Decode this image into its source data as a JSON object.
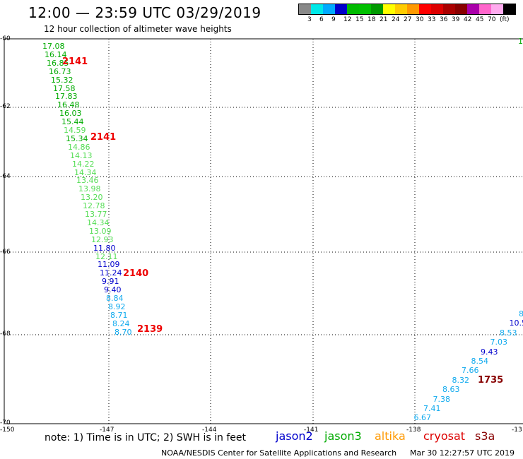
{
  "header": {
    "title": "12:00 — 23:59 UTC 03/29/2019",
    "subtitle": "12 hour collection of altimeter wave heights"
  },
  "legend": {
    "unit": "(ft)",
    "colors": [
      "#888888",
      "#00e8e8",
      "#00aaff",
      "#0000cc",
      "#00bb00",
      "#00c000",
      "#009900",
      "#ffff00",
      "#ffcc00",
      "#ff9900",
      "#ff0000",
      "#dd0000",
      "#aa0000",
      "#880000",
      "#aa00aa",
      "#ff66cc",
      "#ffaaee",
      "#000000"
    ],
    "labels": [
      "3",
      "6",
      "9",
      "12",
      "15",
      "18",
      "21",
      "24",
      "27",
      "30",
      "33",
      "36",
      "39",
      "42",
      "45",
      "70"
    ]
  },
  "map": {
    "lat_labels": [
      "-60",
      "-62",
      "-64",
      "-66",
      "-68",
      "-70"
    ],
    "lon_labels": [
      "-150",
      "-147",
      "-144",
      "-141",
      "-138",
      "-13"
    ]
  },
  "track_west": {
    "values": [
      "17.08",
      "16.14",
      "16.85",
      "16.73",
      "15.32",
      "17.58",
      "17.83",
      "16.48",
      "16.03",
      "15.44",
      "14.59",
      "15.34",
      "14.86",
      "14.13",
      "14.22",
      "14.34",
      "13.46",
      "13.98",
      "13.20",
      "12.78",
      "13.77",
      "14.34",
      "13.09",
      "12.93",
      "11.80",
      "12.11",
      "11.09",
      "11.24",
      "9.91",
      "9.40",
      "8.84",
      "8.92",
      "8.71",
      "8.24",
      "8.70"
    ],
    "colors": [
      "#00aa00",
      "#00aa00",
      "#00aa00",
      "#00aa00",
      "#00aa00",
      "#00aa00",
      "#00aa00",
      "#00aa00",
      "#00aa00",
      "#00aa00",
      "#55dd55",
      "#00aa00",
      "#55dd55",
      "#55dd55",
      "#55dd55",
      "#55dd55",
      "#55dd55",
      "#55dd55",
      "#55dd55",
      "#55dd55",
      "#55dd55",
      "#55dd55",
      "#55dd55",
      "#55dd55",
      "#0000cc",
      "#55dd55",
      "#0000cc",
      "#0000cc",
      "#0000cc",
      "#0000cc",
      "#11aaee",
      "#11aaee",
      "#11aaee",
      "#11aaee",
      "#11aaee"
    ],
    "pass_ids": [
      "2141",
      "2141",
      "2140",
      "2139"
    ]
  },
  "track_east": {
    "values": [
      "8",
      "10.5",
      "8.53",
      "7.03",
      "9.43",
      "8.54",
      "7.66",
      "8.32",
      "8.63",
      "7.38",
      "7.41",
      "6.67"
    ],
    "colors": [
      "#11aaee",
      "#0000cc",
      "#11aaee",
      "#11aaee",
      "#0000cc",
      "#11aaee",
      "#11aaee",
      "#11aaee",
      "#11aaee",
      "#11aaee",
      "#11aaee",
      "#11aaee"
    ],
    "pass_id": "1735",
    "corner_value": "1"
  },
  "bottom": {
    "note": "note: 1) Time is in UTC; 2) SWH is in feet",
    "satellites": [
      "jason2",
      "jason3",
      "altika",
      "cryosat",
      "s3a"
    ],
    "satellite_colors": [
      "#0000cc",
      "#00aa00",
      "#ff9900",
      "#dd0000",
      "#880000"
    ],
    "credit": "NOAA/NESDIS Center for Satellite Applications and Research",
    "timestamp": "Mar 30 12:27:57 UTC 2019"
  }
}
